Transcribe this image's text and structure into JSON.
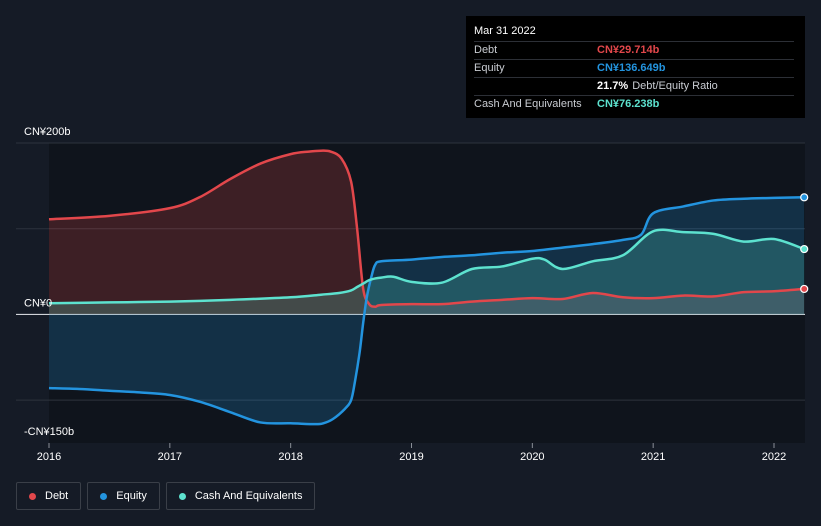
{
  "chart_data": {
    "type": "area",
    "xlim": [
      2016.0,
      2022.27
    ],
    "ylim": [
      -150,
      200
    ],
    "y_ticks": [
      {
        "value": 200,
        "label": "CN¥200b"
      },
      {
        "value": 0,
        "label": "CN¥0"
      },
      {
        "value": -150,
        "label": "-CN¥150b"
      }
    ],
    "x_ticks": [
      {
        "value": 2016,
        "label": "2016"
      },
      {
        "value": 2017,
        "label": "2017"
      },
      {
        "value": 2018,
        "label": "2018"
      },
      {
        "value": 2019,
        "label": "2019"
      },
      {
        "value": 2020,
        "label": "2020"
      },
      {
        "value": 2021,
        "label": "2021"
      },
      {
        "value": 2022,
        "label": "2022"
      }
    ],
    "series": [
      {
        "name": "Debt",
        "color": "#e2474b",
        "x": [
          2016.0,
          2016.5,
          2017.0,
          2017.25,
          2017.5,
          2017.75,
          2018.0,
          2018.15,
          2018.25,
          2018.33,
          2018.42,
          2018.5,
          2018.55,
          2018.6,
          2018.65,
          2018.7,
          2018.75,
          2019.0,
          2019.25,
          2019.5,
          2019.75,
          2020.0,
          2020.25,
          2020.5,
          2020.75,
          2021.0,
          2021.25,
          2021.5,
          2021.75,
          2022.0,
          2022.25
        ],
        "values": [
          111,
          115,
          124,
          137,
          158,
          176,
          187,
          190,
          191,
          190,
          182,
          155,
          100,
          30,
          12,
          9,
          11,
          12,
          12,
          15,
          17,
          19,
          18,
          25,
          20,
          19,
          22,
          21,
          26,
          27,
          29.714
        ]
      },
      {
        "name": "Equity",
        "color": "#2394df",
        "x": [
          2016.0,
          2016.25,
          2016.5,
          2016.75,
          2017.0,
          2017.25,
          2017.5,
          2017.75,
          2018.0,
          2018.2,
          2018.27,
          2018.35,
          2018.45,
          2018.5,
          2018.53,
          2018.57,
          2018.6,
          2018.63,
          2018.67,
          2018.7,
          2018.75,
          2019.0,
          2019.25,
          2019.5,
          2019.75,
          2020.0,
          2020.25,
          2020.5,
          2020.75,
          2020.9,
          2021.0,
          2021.25,
          2021.5,
          2021.75,
          2022.0,
          2022.25
        ],
        "values": [
          -86,
          -87,
          -89,
          -91,
          -94,
          -102,
          -114,
          -126,
          -127,
          -128,
          -127,
          -122,
          -110,
          -100,
          -80,
          -45,
          -10,
          20,
          45,
          58,
          62,
          64,
          67,
          69,
          72,
          74,
          78,
          82,
          87,
          93,
          118,
          126,
          133,
          135,
          136,
          136.649
        ]
      },
      {
        "name": "Cash And Equivalents",
        "color": "#5de2cf",
        "x": [
          2016.0,
          2016.5,
          2017.0,
          2017.5,
          2018.0,
          2018.25,
          2018.4,
          2018.5,
          2018.55,
          2018.6,
          2018.65,
          2018.7,
          2018.75,
          2018.85,
          2019.0,
          2019.25,
          2019.5,
          2019.75,
          2020.0,
          2020.1,
          2020.25,
          2020.5,
          2020.75,
          2021.0,
          2021.25,
          2021.5,
          2021.75,
          2022.0,
          2022.25
        ],
        "values": [
          13,
          14,
          15,
          17,
          20,
          23,
          25,
          28,
          32,
          36,
          40,
          42,
          43,
          44,
          38,
          37,
          53,
          56,
          65,
          64,
          53,
          62,
          69,
          97,
          96,
          94,
          85,
          88,
          76.238
        ]
      }
    ],
    "tooltip": {
      "date": "Mar 31 2022",
      "rows": [
        {
          "label": "Debt",
          "value": "CN¥29.714b",
          "color": "#e2474b"
        },
        {
          "label": "Equity",
          "value": "CN¥136.649b",
          "color": "#2394df"
        },
        {
          "label": "",
          "value": "21.7%",
          "suffix": "Debt/Equity Ratio",
          "color": "#ffffff"
        },
        {
          "label": "Cash And Equivalents",
          "value": "CN¥76.238b",
          "color": "#5de2cf"
        }
      ]
    },
    "legend": [
      {
        "label": "Debt",
        "color": "#e2474b"
      },
      {
        "label": "Equity",
        "color": "#2394df"
      },
      {
        "label": "Cash And Equivalents",
        "color": "#5de2cf"
      }
    ]
  }
}
